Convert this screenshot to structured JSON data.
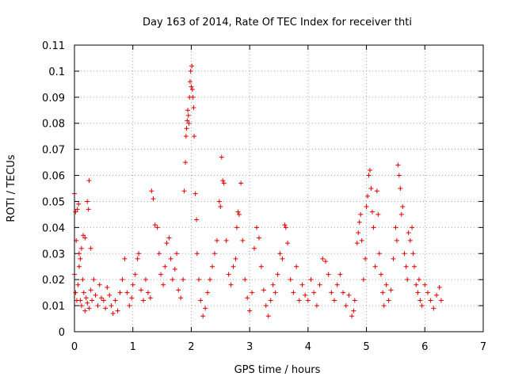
{
  "chart_data": {
    "type": "scatter",
    "title": "Day 163 of 2014, Rate Of TEC Index for receiver thti",
    "xlabel": "GPS time / hours",
    "ylabel": "ROTI / TECUs",
    "xlim": [
      0,
      7
    ],
    "ylim": [
      0,
      0.11
    ],
    "xticks": [
      "0",
      "1",
      "2",
      "3",
      "4",
      "5",
      "6",
      "7"
    ],
    "yticks": [
      "0",
      "0.01",
      "0.02",
      "0.03",
      "0.04",
      "0.05",
      "0.06",
      "0.07",
      "0.08",
      "0.09",
      "0.1",
      "0.11"
    ],
    "grid": true,
    "marker": "+",
    "color": "#e00000",
    "series": [
      {
        "name": "ROTI",
        "points": [
          [
            0.0,
            0.053
          ],
          [
            0.02,
            0.046
          ],
          [
            0.03,
            0.035
          ],
          [
            0.05,
            0.047
          ],
          [
            0.07,
            0.049
          ],
          [
            0.08,
            0.03
          ],
          [
            0.1,
            0.028
          ],
          [
            0.12,
            0.032
          ],
          [
            0.15,
            0.037
          ],
          [
            0.18,
            0.036
          ],
          [
            0.22,
            0.05
          ],
          [
            0.24,
            0.047
          ],
          [
            0.25,
            0.058
          ],
          [
            0.28,
            0.032
          ],
          [
            0.0,
            0.022
          ],
          [
            0.02,
            0.015
          ],
          [
            0.04,
            0.012
          ],
          [
            0.06,
            0.018
          ],
          [
            0.08,
            0.025
          ],
          [
            0.1,
            0.012
          ],
          [
            0.12,
            0.01
          ],
          [
            0.14,
            0.02
          ],
          [
            0.16,
            0.015
          ],
          [
            0.18,
            0.008
          ],
          [
            0.2,
            0.013
          ],
          [
            0.22,
            0.011
          ],
          [
            0.25,
            0.009
          ],
          [
            0.28,
            0.016
          ],
          [
            0.3,
            0.012
          ],
          [
            0.33,
            0.02
          ],
          [
            0.36,
            0.014
          ],
          [
            0.4,
            0.01
          ],
          [
            0.43,
            0.018
          ],
          [
            0.46,
            0.013
          ],
          [
            0.5,
            0.012
          ],
          [
            0.53,
            0.009
          ],
          [
            0.56,
            0.017
          ],
          [
            0.6,
            0.014
          ],
          [
            0.63,
            0.01
          ],
          [
            0.66,
            0.007
          ],
          [
            0.7,
            0.012
          ],
          [
            0.74,
            0.008
          ],
          [
            0.78,
            0.015
          ],
          [
            0.82,
            0.02
          ],
          [
            0.86,
            0.028
          ],
          [
            0.9,
            0.015
          ],
          [
            0.94,
            0.01
          ],
          [
            0.98,
            0.013
          ],
          [
            1.0,
            0.018
          ],
          [
            1.04,
            0.022
          ],
          [
            1.08,
            0.028
          ],
          [
            1.1,
            0.03
          ],
          [
            1.14,
            0.016
          ],
          [
            1.18,
            0.012
          ],
          [
            1.22,
            0.02
          ],
          [
            1.26,
            0.015
          ],
          [
            1.3,
            0.013
          ],
          [
            1.32,
            0.054
          ],
          [
            1.35,
            0.051
          ],
          [
            1.38,
            0.041
          ],
          [
            1.42,
            0.04
          ],
          [
            1.45,
            0.03
          ],
          [
            1.48,
            0.022
          ],
          [
            1.52,
            0.018
          ],
          [
            1.55,
            0.025
          ],
          [
            1.58,
            0.034
          ],
          [
            1.62,
            0.036
          ],
          [
            1.65,
            0.028
          ],
          [
            1.68,
            0.02
          ],
          [
            1.72,
            0.024
          ],
          [
            1.75,
            0.03
          ],
          [
            1.78,
            0.016
          ],
          [
            1.82,
            0.013
          ],
          [
            1.86,
            0.02
          ],
          [
            1.88,
            0.054
          ],
          [
            1.9,
            0.065
          ],
          [
            1.91,
            0.075
          ],
          [
            1.92,
            0.078
          ],
          [
            1.93,
            0.081
          ],
          [
            1.94,
            0.085
          ],
          [
            1.95,
            0.083
          ],
          [
            1.96,
            0.08
          ],
          [
            1.97,
            0.09
          ],
          [
            1.98,
            0.096
          ],
          [
            1.99,
            0.1
          ],
          [
            2.0,
            0.094
          ],
          [
            2.01,
            0.102
          ],
          [
            2.02,
            0.093
          ],
          [
            2.03,
            0.09
          ],
          [
            2.04,
            0.086
          ],
          [
            2.05,
            0.075
          ],
          [
            2.07,
            0.053
          ],
          [
            2.09,
            0.043
          ],
          [
            2.1,
            0.03
          ],
          [
            2.13,
            0.02
          ],
          [
            2.16,
            0.012
          ],
          [
            2.2,
            0.006
          ],
          [
            2.24,
            0.009
          ],
          [
            2.28,
            0.015
          ],
          [
            2.32,
            0.02
          ],
          [
            2.36,
            0.025
          ],
          [
            2.4,
            0.03
          ],
          [
            2.44,
            0.035
          ],
          [
            2.48,
            0.05
          ],
          [
            2.5,
            0.048
          ],
          [
            2.52,
            0.067
          ],
          [
            2.54,
            0.058
          ],
          [
            2.56,
            0.057
          ],
          [
            2.6,
            0.035
          ],
          [
            2.64,
            0.022
          ],
          [
            2.68,
            0.018
          ],
          [
            2.72,
            0.025
          ],
          [
            2.76,
            0.028
          ],
          [
            2.78,
            0.04
          ],
          [
            2.8,
            0.046
          ],
          [
            2.82,
            0.045
          ],
          [
            2.85,
            0.057
          ],
          [
            2.88,
            0.035
          ],
          [
            2.92,
            0.02
          ],
          [
            2.96,
            0.013
          ],
          [
            3.0,
            0.008
          ],
          [
            3.04,
            0.015
          ],
          [
            3.08,
            0.032
          ],
          [
            3.12,
            0.04
          ],
          [
            3.16,
            0.036
          ],
          [
            3.2,
            0.025
          ],
          [
            3.24,
            0.016
          ],
          [
            3.28,
            0.01
          ],
          [
            3.32,
            0.006
          ],
          [
            3.36,
            0.012
          ],
          [
            3.4,
            0.018
          ],
          [
            3.44,
            0.015
          ],
          [
            3.48,
            0.022
          ],
          [
            3.52,
            0.03
          ],
          [
            3.56,
            0.028
          ],
          [
            3.6,
            0.041
          ],
          [
            3.62,
            0.04
          ],
          [
            3.65,
            0.034
          ],
          [
            3.7,
            0.02
          ],
          [
            3.75,
            0.015
          ],
          [
            3.8,
            0.025
          ],
          [
            3.85,
            0.012
          ],
          [
            3.9,
            0.018
          ],
          [
            3.95,
            0.014
          ],
          [
            4.0,
            0.012
          ],
          [
            4.05,
            0.02
          ],
          [
            4.1,
            0.015
          ],
          [
            4.15,
            0.01
          ],
          [
            4.2,
            0.018
          ],
          [
            4.25,
            0.028
          ],
          [
            4.3,
            0.027
          ],
          [
            4.35,
            0.022
          ],
          [
            4.4,
            0.015
          ],
          [
            4.45,
            0.012
          ],
          [
            4.5,
            0.018
          ],
          [
            4.55,
            0.022
          ],
          [
            4.6,
            0.015
          ],
          [
            4.65,
            0.01
          ],
          [
            4.7,
            0.014
          ],
          [
            4.75,
            0.006
          ],
          [
            4.78,
            0.008
          ],
          [
            4.8,
            0.012
          ],
          [
            4.84,
            0.034
          ],
          [
            4.86,
            0.038
          ],
          [
            4.88,
            0.042
          ],
          [
            4.9,
            0.045
          ],
          [
            4.92,
            0.035
          ],
          [
            4.95,
            0.02
          ],
          [
            4.98,
            0.028
          ],
          [
            5.0,
            0.048
          ],
          [
            5.02,
            0.052
          ],
          [
            5.04,
            0.06
          ],
          [
            5.06,
            0.062
          ],
          [
            5.08,
            0.055
          ],
          [
            5.1,
            0.046
          ],
          [
            5.12,
            0.04
          ],
          [
            5.15,
            0.025
          ],
          [
            5.18,
            0.054
          ],
          [
            5.2,
            0.045
          ],
          [
            5.22,
            0.03
          ],
          [
            5.25,
            0.022
          ],
          [
            5.28,
            0.015
          ],
          [
            5.3,
            0.01
          ],
          [
            5.34,
            0.018
          ],
          [
            5.38,
            0.012
          ],
          [
            5.42,
            0.016
          ],
          [
            5.46,
            0.028
          ],
          [
            5.5,
            0.04
          ],
          [
            5.52,
            0.035
          ],
          [
            5.54,
            0.064
          ],
          [
            5.56,
            0.06
          ],
          [
            5.58,
            0.055
          ],
          [
            5.6,
            0.045
          ],
          [
            5.62,
            0.048
          ],
          [
            5.65,
            0.03
          ],
          [
            5.68,
            0.025
          ],
          [
            5.7,
            0.02
          ],
          [
            5.72,
            0.038
          ],
          [
            5.75,
            0.035
          ],
          [
            5.78,
            0.04
          ],
          [
            5.8,
            0.03
          ],
          [
            5.82,
            0.025
          ],
          [
            5.85,
            0.018
          ],
          [
            5.88,
            0.015
          ],
          [
            5.9,
            0.02
          ],
          [
            5.92,
            0.012
          ],
          [
            5.95,
            0.01
          ],
          [
            6.0,
            0.018
          ],
          [
            6.05,
            0.015
          ],
          [
            6.1,
            0.012
          ],
          [
            6.15,
            0.009
          ],
          [
            6.2,
            0.014
          ],
          [
            6.25,
            0.017
          ],
          [
            6.28,
            0.012
          ]
        ]
      }
    ]
  }
}
